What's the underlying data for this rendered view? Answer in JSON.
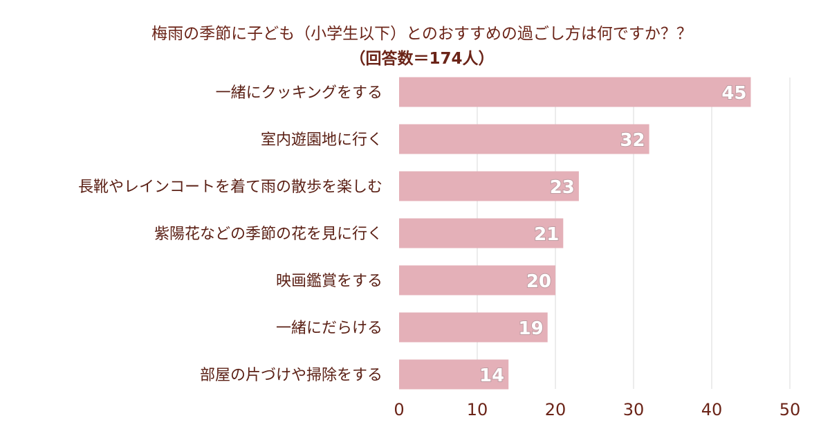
{
  "chart_data": {
    "type": "bar",
    "orientation": "horizontal",
    "title": "梅雨の季節に子ども（小学生以下）とのおすすめの過ごし方は何ですか？？",
    "subtitle": "（回答数＝174人）",
    "categories": [
      "一緒にクッキングをする",
      "室内遊園地に行く",
      "長靴やレインコートを着て雨の散歩を楽しむ",
      "紫陽花などの季節の花を見に行く",
      "映画鑑賞をする",
      "一緒にだらける",
      "部屋の片づけや掃除をする"
    ],
    "values": [
      45,
      32,
      23,
      21,
      20,
      19,
      14
    ],
    "data_labels": [
      "45",
      "32",
      "23",
      "21",
      "20",
      "19",
      "14"
    ],
    "xlim": [
      0,
      50
    ],
    "xticks": [
      0,
      10,
      20,
      30,
      40,
      50
    ],
    "xtick_labels": [
      "0",
      "10",
      "20",
      "30",
      "40",
      "50"
    ],
    "grid": true,
    "bar_color": "#e4b0b8",
    "title_color": "#6b2418",
    "text_color": "#5a1f14",
    "grid_color": "#e6e6e6"
  }
}
